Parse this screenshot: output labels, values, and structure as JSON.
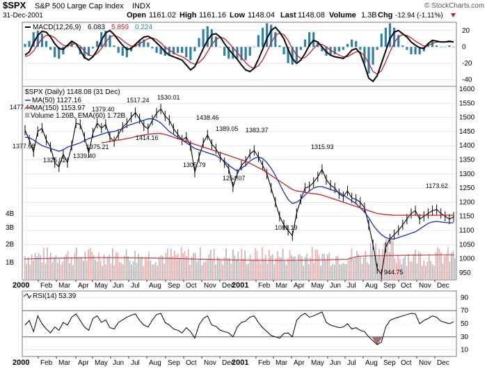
{
  "header": {
    "symbol": "$SPX",
    "name": "S&P 500 Large Cap Index",
    "exchange": "INDX",
    "date": "31-Dec-2001",
    "open_label": "Open",
    "open": "1161.02",
    "high_label": "High",
    "high": "1161.16",
    "low_label": "Low",
    "low": "1148.04",
    "last_label": "Last",
    "last": "1148.08",
    "volume_label": "Volume",
    "volume": "1.3B",
    "chg_label": "Chg",
    "chg": "-12.94 (-1.11%)",
    "copyright": "© StockCharts.com"
  },
  "colors": {
    "price_black": "#000000",
    "ma50_blue": "#1a2fb0",
    "ma150_red": "#c0202a",
    "macd_hist": "#2f7fa6",
    "volume_up": "#b5b5b5",
    "volume_down": "#f0a6a6",
    "rsi_fill": "#a06e6e",
    "grid": "#d9d9d9"
  },
  "chart_data": [
    {
      "type": "line",
      "panel": "macd",
      "legend": "MACD(12,26,9) 6.083, 5.859, 0.224",
      "legend_parts": {
        "name": "MACD(12,26,9)",
        "macd": "6.083",
        "signal": "5.859",
        "hist": "0.224"
      },
      "yticks": [
        20,
        0,
        -20,
        -40
      ],
      "ylim": [
        -48,
        30
      ],
      "x": [
        0,
        5,
        10,
        15,
        20,
        25,
        30,
        35,
        40,
        45,
        50,
        55,
        60,
        65,
        70,
        75,
        80,
        85,
        90,
        95,
        100,
        105,
        110,
        115,
        120,
        125,
        130,
        135,
        140,
        145,
        150,
        155,
        160,
        165,
        170,
        175,
        180,
        185,
        190,
        195,
        200,
        205,
        210,
        215,
        220,
        225,
        230,
        235,
        240,
        245,
        250,
        255,
        260,
        265,
        270,
        275,
        280,
        285,
        290,
        295,
        300,
        305,
        310,
        315,
        320,
        325,
        330,
        335,
        340,
        345,
        350,
        355,
        360,
        365,
        370,
        375,
        380,
        385,
        390,
        395,
        400,
        405,
        410,
        415,
        420,
        425,
        430,
        435,
        440,
        445,
        450,
        455,
        460,
        465,
        470,
        475,
        480,
        485,
        490,
        495,
        500,
        505
      ],
      "series": [
        {
          "name": "MACD",
          "values": [
            -10,
            -6,
            5,
            14,
            19,
            18,
            12,
            4,
            -2,
            -3,
            2,
            7,
            4,
            -4,
            -13,
            -16,
            -12,
            -4,
            8,
            17,
            20,
            15,
            8,
            2,
            -3,
            -2,
            3,
            8,
            12,
            13,
            10,
            5,
            0,
            -6,
            -10,
            -12,
            -14,
            -16,
            -22,
            -28,
            -24,
            -13,
            -2,
            8,
            15,
            16,
            12,
            4,
            -3,
            -9,
            -15,
            -22,
            -28,
            -30,
            -26,
            -15,
            -3,
            10,
            20,
            24,
            18,
            10,
            -3,
            -14,
            -20,
            -16,
            -8,
            2,
            8,
            6,
            0,
            -6,
            -10,
            -12,
            -13,
            -14,
            -10,
            -4,
            -2,
            -8,
            -22,
            -38,
            -42,
            -35,
            -20,
            -5,
            10,
            18,
            20,
            16,
            12,
            6,
            2,
            -1,
            -2,
            4,
            8,
            7,
            6,
            6,
            7,
            6
          ]
        },
        {
          "name": "Signal",
          "values": [
            -12,
            -10,
            -5,
            3,
            10,
            14,
            14,
            11,
            6,
            2,
            1,
            3,
            4,
            1,
            -5,
            -10,
            -11,
            -8,
            -2,
            6,
            12,
            14,
            12,
            8,
            4,
            1,
            1,
            4,
            7,
            10,
            11,
            9,
            5,
            0,
            -4,
            -7,
            -10,
            -12,
            -15,
            -19,
            -21,
            -19,
            -14,
            -6,
            3,
            9,
            12,
            10,
            5,
            -1,
            -7,
            -13,
            -19,
            -24,
            -26,
            -23,
            -16,
            -6,
            5,
            14,
            17,
            15,
            8,
            -2,
            -10,
            -14,
            -13,
            -8,
            -2,
            3,
            3,
            0,
            -4,
            -7,
            -10,
            -12,
            -12,
            -9,
            -6,
            -6,
            -11,
            -20,
            -30,
            -33,
            -29,
            -18,
            -6,
            5,
            12,
            15,
            14,
            11,
            7,
            4,
            1,
            2,
            4,
            6,
            6,
            6,
            6,
            6
          ]
        }
      ]
    },
    {
      "type": "line",
      "panel": "price",
      "legend": [
        "$SPX (Daily) 1148.08 (31 Dec)",
        "MA(50) 1127.16",
        "MA(150) 1153.97",
        "Volume 1.26B, EMA(60) 1.72B"
      ],
      "ylabel": "",
      "yticks": [
        1600,
        1550,
        1500,
        1450,
        1400,
        1350,
        1300,
        1250,
        1200,
        1150,
        1100,
        1050,
        1000,
        950
      ],
      "ylim": [
        925,
        1610
      ],
      "volume_ticks": [
        "4B",
        "3B",
        "2B",
        "1B"
      ],
      "x": [
        0,
        5,
        10,
        15,
        20,
        25,
        30,
        35,
        40,
        45,
        50,
        55,
        60,
        65,
        70,
        75,
        80,
        85,
        90,
        95,
        100,
        105,
        110,
        115,
        120,
        125,
        130,
        135,
        140,
        145,
        150,
        155,
        160,
        165,
        170,
        175,
        180,
        185,
        190,
        195,
        200,
        205,
        210,
        215,
        220,
        225,
        230,
        235,
        240,
        245,
        250,
        255,
        260,
        265,
        270,
        275,
        280,
        285,
        290,
        295,
        300,
        305,
        310,
        315,
        320,
        325,
        330,
        335,
        340,
        345,
        350,
        355,
        360,
        365,
        370,
        375,
        380,
        385,
        390,
        395,
        400,
        405,
        410,
        415,
        420,
        425,
        430,
        435,
        440,
        445,
        450,
        455,
        460,
        465,
        470,
        475,
        480,
        485,
        490,
        495,
        500,
        505
      ],
      "series": [
        {
          "name": "$SPX (Daily)",
          "values": [
            1455,
            1420,
            1378,
            1450,
            1462,
            1420,
            1395,
            1340,
            1325,
            1370,
            1340,
            1400,
            1480,
            1475,
            1430,
            1375,
            1445,
            1480,
            1462,
            1475,
            1430,
            1414,
            1440,
            1465,
            1480,
            1500,
            1517,
            1495,
            1470,
            1460,
            1490,
            1515,
            1530,
            1505,
            1490,
            1460,
            1440,
            1420,
            1430,
            1400,
            1306,
            1360,
            1410,
            1438,
            1405,
            1389,
            1360,
            1340,
            1318,
            1254,
            1300,
            1330,
            1345,
            1370,
            1383,
            1360,
            1330,
            1300,
            1250,
            1200,
            1150,
            1120,
            1100,
            1081,
            1160,
            1210,
            1250,
            1255,
            1270,
            1290,
            1316,
            1280,
            1260,
            1250,
            1230,
            1220,
            1240,
            1215,
            1210,
            1200,
            1180,
            1120,
            1050,
            965,
            945,
            1040,
            1070,
            1085,
            1100,
            1120,
            1140,
            1160,
            1170,
            1140,
            1150,
            1160,
            1170,
            1174,
            1160,
            1150,
            1140,
            1148
          ]
        },
        {
          "name": "MA(50)",
          "values": [
            1430,
            1428,
            1420,
            1410,
            1400,
            1395,
            1390,
            1385,
            1380,
            1385,
            1395,
            1400,
            1405,
            1410,
            1418,
            1425,
            1430,
            1435,
            1440,
            1445,
            1448,
            1450,
            1455,
            1460,
            1470,
            1475,
            1480,
            1485,
            1490,
            1495,
            1495,
            1490,
            1480,
            1465,
            1450,
            1440,
            1430,
            1420,
            1410,
            1400,
            1390,
            1385,
            1380,
            1375,
            1370,
            1365,
            1355,
            1345,
            1330,
            1320,
            1310,
            1320,
            1330,
            1345,
            1355,
            1360,
            1355,
            1340,
            1320,
            1295,
            1265,
            1235,
            1210,
            1195,
            1200,
            1210,
            1225,
            1240,
            1250,
            1255,
            1255,
            1250,
            1245,
            1240,
            1235,
            1225,
            1215,
            1205,
            1195,
            1180,
            1165,
            1145,
            1120,
            1100,
            1085,
            1075,
            1070,
            1070,
            1075,
            1080,
            1085,
            1090,
            1095,
            1105,
            1115,
            1125,
            1130,
            1132,
            1130,
            1128,
            1127,
            1127
          ]
        },
        {
          "name": "MA(150)",
          "values": [
            null,
            null,
            null,
            null,
            null,
            null,
            null,
            null,
            null,
            null,
            null,
            null,
            null,
            null,
            null,
            null,
            null,
            null,
            1410,
            1412,
            1415,
            1418,
            1420,
            1422,
            1425,
            1428,
            1432,
            1435,
            1438,
            1440,
            1442,
            1443,
            1443,
            1440,
            1435,
            1430,
            1425,
            1420,
            1415,
            1410,
            1405,
            1400,
            1395,
            1390,
            1385,
            1380,
            1375,
            1370,
            1365,
            1360,
            1355,
            1350,
            1345,
            1338,
            1330,
            1322,
            1315,
            1305,
            1295,
            1285,
            1275,
            1265,
            1255,
            1245,
            1240,
            1238,
            1235,
            1232,
            1230,
            1228,
            1225,
            1220,
            1215,
            1210,
            1205,
            1200,
            1195,
            1190,
            1185,
            1180,
            1175,
            1170,
            1165,
            1160,
            1158,
            1156,
            1155,
            1154,
            1154,
            1154,
            1154,
            1154,
            1154,
            1154,
            1154,
            1154,
            1154,
            1154,
            1154,
            1154,
            1154,
            1154
          ]
        }
      ],
      "annotations": [
        "1477.44",
        "1379.40",
        "1377.68",
        "1325.02",
        "1339.40",
        "1375.21",
        "1517.24",
        "1414.16",
        "1530.01",
        "1438.46",
        "1305.79",
        "1389.05",
        "1254.07",
        "1383.37",
        "1081.19",
        "1315.93",
        "944.75",
        "1173.62"
      ]
    },
    {
      "type": "line",
      "panel": "rsi",
      "legend": "RSI(14) 53.39",
      "yticks": [
        90,
        70,
        50,
        30,
        10
      ],
      "ylim": [
        0,
        100
      ],
      "x": [
        0,
        5,
        10,
        15,
        20,
        25,
        30,
        35,
        40,
        45,
        50,
        55,
        60,
        65,
        70,
        75,
        80,
        85,
        90,
        95,
        100,
        105,
        110,
        115,
        120,
        125,
        130,
        135,
        140,
        145,
        150,
        155,
        160,
        165,
        170,
        175,
        180,
        185,
        190,
        195,
        200,
        205,
        210,
        215,
        220,
        225,
        230,
        235,
        240,
        245,
        250,
        255,
        260,
        265,
        270,
        275,
        280,
        285,
        290,
        295,
        300,
        305,
        310,
        315,
        320,
        325,
        330,
        335,
        340,
        345,
        350,
        355,
        360,
        365,
        370,
        375,
        380,
        385,
        390,
        395,
        400,
        405,
        410,
        415,
        420,
        425,
        430,
        435,
        440,
        445,
        450,
        455,
        460,
        465,
        470,
        475,
        480,
        485,
        490,
        495,
        500,
        505
      ],
      "values": [
        48,
        55,
        38,
        62,
        50,
        42,
        36,
        45,
        40,
        52,
        48,
        60,
        65,
        55,
        45,
        40,
        58,
        62,
        52,
        56,
        44,
        42,
        52,
        56,
        60,
        63,
        65,
        55,
        48,
        45,
        56,
        64,
        66,
        52,
        48,
        42,
        40,
        36,
        44,
        38,
        28,
        48,
        58,
        62,
        48,
        46,
        40,
        38,
        36,
        30,
        45,
        52,
        54,
        60,
        62,
        52,
        44,
        38,
        32,
        30,
        28,
        35,
        36,
        30,
        55,
        62,
        66,
        60,
        62,
        65,
        68,
        52,
        48,
        46,
        44,
        45,
        50,
        42,
        44,
        40,
        38,
        30,
        24,
        18,
        22,
        45,
        55,
        58,
        60,
        62,
        64,
        66,
        65,
        50,
        55,
        58,
        62,
        60,
        54,
        52,
        50,
        53
      ]
    }
  ],
  "x_axis": {
    "months_top": [
      "Feb",
      "Mar",
      "Apr",
      "May",
      "Jun",
      "Jul",
      "Aug",
      "Sep",
      "Oct",
      "Nov",
      "Dec",
      "Feb",
      "Mar",
      "Apr",
      "May",
      "Jun",
      "Jul",
      "Aug",
      "Sep",
      "Oct",
      "Nov",
      "Dec"
    ],
    "years": [
      "2000",
      "2001"
    ]
  }
}
